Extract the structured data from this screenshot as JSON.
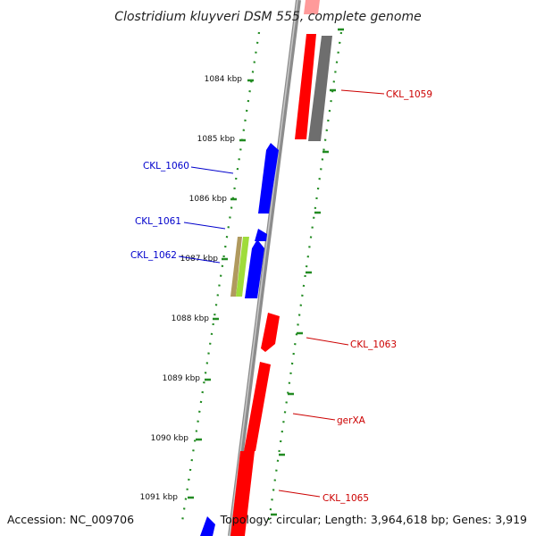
{
  "title": "Clostridium kluyveri DSM 555, complete genome",
  "footer": {
    "accession": "Accession: NC_009706",
    "stats": "Topology: circular; Length: 3,964,618 bp; Genes: 3,919"
  },
  "colors": {
    "backbone": "#8c8c8c",
    "forward": "#ff0000",
    "reverse": "#0000ff",
    "grey_gene": "#707070",
    "tick": "#228b22",
    "label_forward": "#cc0000",
    "label_reverse": "#0000cc"
  },
  "ticks": [
    {
      "label": "1084 kbp"
    },
    {
      "label": "1085 kbp"
    },
    {
      "label": "1086 kbp"
    },
    {
      "label": "1087 kbp"
    },
    {
      "label": "1088 kbp"
    },
    {
      "label": "1089 kbp"
    },
    {
      "label": "1090 kbp"
    },
    {
      "label": "1091 kbp"
    }
  ],
  "genes": [
    {
      "name": "CKL_1059",
      "strand": "forward"
    },
    {
      "name": "CKL_1060",
      "strand": "reverse"
    },
    {
      "name": "CKL_1061",
      "strand": "reverse"
    },
    {
      "name": "CKL_1062",
      "strand": "reverse"
    },
    {
      "name": "CKL_1063",
      "strand": "forward"
    },
    {
      "name": "gerXA",
      "strand": "forward"
    },
    {
      "name": "CKL_1065",
      "strand": "forward"
    }
  ]
}
